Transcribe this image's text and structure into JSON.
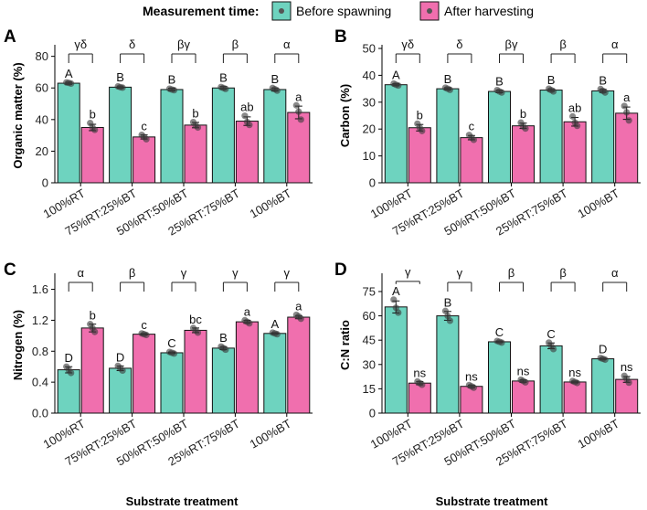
{
  "legend": {
    "title": "Measurement time:",
    "items": [
      {
        "name": "Before spawning",
        "color": "#6ed3bf"
      },
      {
        "name": "After harvesting",
        "color": "#f06fae"
      }
    ]
  },
  "xlabel": "Substrate treatment",
  "chart_data": [
    {
      "panel": "A",
      "type": "bar",
      "ylabel": "Organic matter (%)",
      "ylim": [
        0,
        85
      ],
      "yticks": [
        0,
        20,
        40,
        60,
        80
      ],
      "categories": [
        "100%RT",
        "75%RT:25%BT",
        "50%RT:50%BT",
        "25%RT:75%BT",
        "100%BT"
      ],
      "series": [
        {
          "name": "Before spawning",
          "values": [
            63,
            60.5,
            59,
            60,
            59
          ],
          "errors": [
            0.7,
            0.7,
            0.8,
            0.9,
            1.0
          ],
          "points": [
            [
              63.5,
              62.8,
              63.2
            ],
            [
              61,
              60.2,
              60.5
            ],
            [
              59.5,
              58.6,
              59
            ],
            [
              60.6,
              59.4,
              60
            ],
            [
              60,
              58.3,
              59.2
            ]
          ],
          "letters": [
            "A",
            "B",
            "B",
            "B",
            "B"
          ]
        },
        {
          "name": "After harvesting",
          "values": [
            35,
            29,
            36.5,
            39,
            44.5
          ],
          "errors": [
            2.0,
            1.3,
            1.7,
            2.7,
            4.0
          ],
          "points": [
            [
              37.8,
              33.5,
              35
            ],
            [
              30.3,
              27.6,
              29
            ],
            [
              38.4,
              35,
              36.3
            ],
            [
              42.4,
              36.6,
              38.5
            ],
            [
              49,
              40,
              45
            ]
          ],
          "letters": [
            "b",
            "c",
            "b",
            "ab",
            "a"
          ]
        }
      ],
      "comparison_letters": [
        "γδ",
        "δ",
        "βγ",
        "β",
        "α"
      ]
    },
    {
      "panel": "B",
      "type": "bar",
      "ylabel": "Carbon (%)",
      "ylim": [
        0,
        50
      ],
      "yticks": [
        0,
        10,
        20,
        30,
        40,
        50
      ],
      "categories": [
        "100%RT",
        "75%RT:25%BT",
        "50%RT:50%BT",
        "25%RT:75%BT",
        "100%BT"
      ],
      "series": [
        {
          "name": "Before spawning",
          "values": [
            36.5,
            35,
            34,
            34.5,
            34.2
          ],
          "errors": [
            0.4,
            0.4,
            0.5,
            0.5,
            0.6
          ],
          "points": [
            [
              36.9,
              36.2,
              36.5
            ],
            [
              35.4,
              34.6,
              35
            ],
            [
              34.5,
              33.6,
              34
            ],
            [
              35,
              34,
              34.5
            ],
            [
              34.9,
              33.6,
              34.2
            ]
          ],
          "letters": [
            "A",
            "B",
            "B",
            "B",
            "B"
          ]
        },
        {
          "name": "After harvesting",
          "values": [
            20.5,
            16.8,
            21.2,
            22.7,
            25.9
          ],
          "errors": [
            1.2,
            0.8,
            1.0,
            1.6,
            2.3
          ],
          "points": [
            [
              22,
              19.3,
              20.5
            ],
            [
              17.8,
              16,
              16.8
            ],
            [
              22.4,
              20.2,
              21
            ],
            [
              24.7,
              21.2,
              22.4
            ],
            [
              28.6,
              23.2,
              26.2
            ]
          ],
          "letters": [
            "b",
            "c",
            "b",
            "ab",
            "a"
          ]
        }
      ],
      "comparison_letters": [
        "γδ",
        "δ",
        "βγ",
        "β",
        "α"
      ]
    },
    {
      "panel": "C",
      "type": "bar",
      "ylabel": "Nitrogen (%)",
      "ylim": [
        0,
        1.76
      ],
      "yticks": [
        0.0,
        0.4,
        0.8,
        1.2,
        1.6
      ],
      "categories": [
        "100%RT",
        "75%RT:25%BT",
        "50%RT:50%BT",
        "25%RT:75%BT",
        "100%BT"
      ],
      "series": [
        {
          "name": "Before spawning",
          "values": [
            0.56,
            0.58,
            0.78,
            0.84,
            1.03
          ],
          "errors": [
            0.04,
            0.03,
            0.01,
            0.02,
            0.01
          ],
          "points": [
            [
              0.6,
              0.52,
              0.56
            ],
            [
              0.61,
              0.55,
              0.58
            ],
            [
              0.79,
              0.77,
              0.78
            ],
            [
              0.86,
              0.82,
              0.84
            ],
            [
              1.04,
              1.02,
              1.03
            ]
          ],
          "letters": [
            "D",
            "D",
            "C",
            "B",
            "A"
          ]
        },
        {
          "name": "After harvesting",
          "values": [
            1.1,
            1.02,
            1.07,
            1.18,
            1.24
          ],
          "errors": [
            0.05,
            0.01,
            0.03,
            0.02,
            0.02
          ],
          "points": [
            [
              1.15,
              1.05,
              1.1
            ],
            [
              1.03,
              1.01,
              1.02
            ],
            [
              1.1,
              1.04,
              1.07
            ],
            [
              1.2,
              1.16,
              1.18
            ],
            [
              1.27,
              1.22,
              1.25
            ]
          ],
          "letters": [
            "b",
            "c",
            "bc",
            "a",
            "a"
          ]
        }
      ],
      "comparison_letters": [
        "α",
        "β",
        "γ",
        "γ",
        "γ"
      ]
    },
    {
      "panel": "D",
      "type": "bar",
      "ylabel": "C:N ratio",
      "ylim": [
        0,
        84
      ],
      "yticks": [
        0,
        15,
        30,
        45,
        60,
        75
      ],
      "categories": [
        "100%RT",
        "75%RT:25%BT",
        "50%RT:50%BT",
        "25%RT:75%BT",
        "100%BT"
      ],
      "series": [
        {
          "name": "Before spawning",
          "values": [
            65.5,
            60,
            44,
            41.5,
            33.5
          ],
          "errors": [
            3.7,
            2.7,
            0.5,
            1.8,
            0.4
          ],
          "points": [
            [
              70,
              62,
              65
            ],
            [
              63,
              57,
              60
            ],
            [
              44.5,
              43.5,
              44
            ],
            [
              43.5,
              39.5,
              41.5
            ],
            [
              34,
              33,
              33.5
            ]
          ],
          "letters": [
            "A",
            "B",
            "C",
            "C",
            "D"
          ]
        },
        {
          "name": "After harvesting",
          "values": [
            18.5,
            16.5,
            19.8,
            19.2,
            20.8
          ],
          "errors": [
            1.0,
            0.8,
            0.8,
            0.6,
            1.8
          ],
          "points": [
            [
              19.5,
              17.5,
              18.5
            ],
            [
              17.3,
              15.7,
              16.5
            ],
            [
              20.6,
              19,
              19.8
            ],
            [
              19.8,
              18.6,
              19.2
            ],
            [
              23,
              18.8,
              21
            ]
          ],
          "letters": [
            "ns",
            "ns",
            "ns",
            "ns",
            "ns"
          ]
        }
      ],
      "comparison_letters": [
        "γ",
        "γ",
        "β",
        "β",
        "α"
      ]
    }
  ]
}
